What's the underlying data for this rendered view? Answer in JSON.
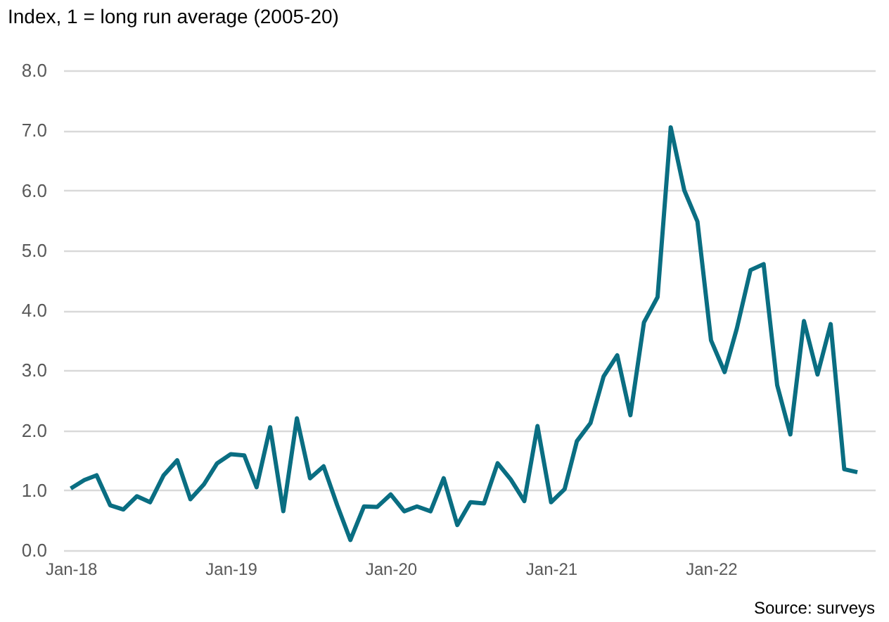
{
  "chart_data": {
    "type": "line",
    "ylabel": "Index, 1 = long run average (2005-20)",
    "annotations": [
      "Source: surveys"
    ],
    "x": [
      "2018-01",
      "2018-02",
      "2018-03",
      "2018-04",
      "2018-05",
      "2018-06",
      "2018-07",
      "2018-08",
      "2018-09",
      "2018-10",
      "2018-11",
      "2018-12",
      "2019-01",
      "2019-02",
      "2019-03",
      "2019-04",
      "2019-05",
      "2019-06",
      "2019-07",
      "2019-08",
      "2019-09",
      "2019-10",
      "2019-11",
      "2019-12",
      "2020-01",
      "2020-02",
      "2020-03",
      "2020-04",
      "2020-05",
      "2020-06",
      "2020-07",
      "2020-08",
      "2020-09",
      "2020-10",
      "2020-11",
      "2020-12",
      "2021-01",
      "2021-02",
      "2021-03",
      "2021-04",
      "2021-05",
      "2021-06",
      "2021-07",
      "2021-08",
      "2021-09",
      "2021-10",
      "2021-11",
      "2021-12",
      "2022-01",
      "2022-02",
      "2022-03",
      "2022-04",
      "2022-05",
      "2022-06",
      "2022-07",
      "2022-08",
      "2022-09",
      "2022-10",
      "2022-11",
      "2022-12"
    ],
    "series": [
      {
        "color": "#0a6e82",
        "values": [
          1.03,
          1.17,
          1.25,
          0.75,
          0.68,
          0.9,
          0.8,
          1.25,
          1.5,
          0.85,
          1.1,
          1.45,
          1.6,
          1.58,
          1.05,
          2.05,
          0.65,
          2.2,
          1.2,
          1.4,
          0.75,
          0.17,
          0.73,
          0.72,
          0.93,
          0.65,
          0.73,
          0.65,
          1.2,
          0.42,
          0.8,
          0.78,
          1.45,
          1.18,
          0.82,
          2.07,
          0.8,
          1.02,
          1.82,
          2.12,
          2.9,
          3.25,
          2.25,
          3.8,
          4.22,
          7.05,
          6.0,
          5.48,
          3.5,
          2.97,
          3.7,
          4.67,
          4.77,
          2.75,
          1.93,
          3.82,
          2.93,
          3.77,
          1.35,
          1.3
        ]
      }
    ],
    "xlim": [
      "2017-12-15",
      "2023-01-10"
    ],
    "xticks": [
      {
        "value": "2018-01",
        "label": "Jan-18"
      },
      {
        "value": "2019-01",
        "label": "Jan-19"
      },
      {
        "value": "2020-01",
        "label": "Jan-20"
      },
      {
        "value": "2021-01",
        "label": "Jan-21"
      },
      {
        "value": "2022-01",
        "label": "Jan-22"
      }
    ],
    "ylim": [
      0,
      8
    ],
    "yticks": [
      {
        "value": 0,
        "label": "0.0"
      },
      {
        "value": 1,
        "label": "1.0"
      },
      {
        "value": 2,
        "label": "2.0"
      },
      {
        "value": 3,
        "label": "3.0"
      },
      {
        "value": 4,
        "label": "4.0"
      },
      {
        "value": 5,
        "label": "5.0"
      },
      {
        "value": 6,
        "label": "6.0"
      },
      {
        "value": 7,
        "label": "7.0"
      },
      {
        "value": 8,
        "label": "8.0"
      }
    ],
    "grid": "y",
    "marker": "none",
    "line_style": "solid",
    "legend": false
  }
}
